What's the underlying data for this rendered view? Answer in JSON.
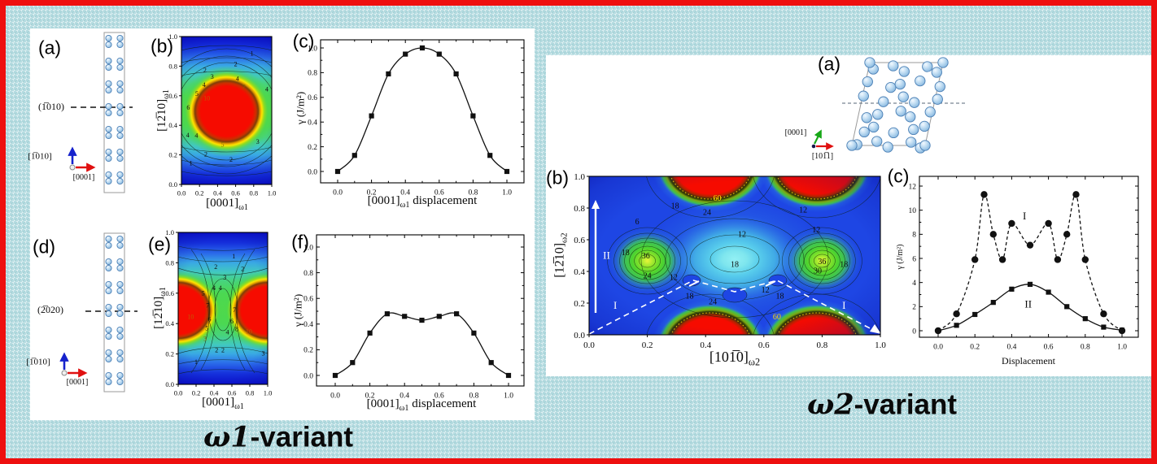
{
  "colors": {
    "background": "#b7dde2",
    "border": "#ee0f0f",
    "panel": "#ffffff",
    "contour_low": "#0b10c8",
    "contour_mid": "#47d37d",
    "contour_high": "#f60b00",
    "atom_fill": "#bcdcf2",
    "axis_blue": "#1622cc",
    "axis_red": "#e01010",
    "axis_green": "#18a818"
  },
  "captions": {
    "left": {
      "italic": "ω1",
      "rest": "-variant"
    },
    "right": {
      "italic": "ω2",
      "rest": "-variant"
    }
  },
  "left_panel": {
    "a": {
      "label": "(a)",
      "plane": "(1̅010)",
      "axis_up": "[1̅010]",
      "axis_right": "[0001]"
    },
    "b": {
      "label": "(b)"
    },
    "c": {
      "label": "(c)"
    },
    "d": {
      "label": "(d)",
      "plane": "(2̅020)",
      "axis_up": "[1̅010]",
      "axis_right": "[0001]"
    },
    "e": {
      "label": "(e)"
    },
    "f": {
      "label": "(f)"
    }
  },
  "right_panel": {
    "a": {
      "label": "(a)",
      "axis_up": "[0001]",
      "axis_right": "[101̅1]"
    },
    "b": {
      "label": "(b)"
    },
    "c": {
      "label": "(c)"
    }
  },
  "chart_data": [
    {
      "id": "omega1-gamma-surface-1010",
      "type": "heatmap",
      "xlabel": {
        "main": "[0001]",
        "sub": "ω1"
      },
      "ylabel": {
        "main": "[12̅10]",
        "sub": "ω1"
      },
      "xlim": [
        0,
        1
      ],
      "ylim": [
        0,
        1
      ],
      "xticks": [
        "0.0",
        "0.2",
        "0.4",
        "0.6",
        "0.8",
        "1.0"
      ],
      "yticks": [
        "0.0",
        "0.2",
        "0.4",
        "0.6",
        "0.8",
        "1.0"
      ],
      "high_region_center": [
        0.5,
        0.5
      ],
      "contour_labels": [
        {
          "t": "1",
          "x": 0.78,
          "y": 0.885
        },
        {
          "t": "2",
          "x": 0.6,
          "y": 0.815
        },
        {
          "t": "2",
          "x": 0.26,
          "y": 0.775
        },
        {
          "t": "3",
          "x": 0.34,
          "y": 0.73
        },
        {
          "t": "4",
          "x": 0.62,
          "y": 0.715
        },
        {
          "t": "4",
          "x": 0.25,
          "y": 0.675
        },
        {
          "t": "5",
          "x": 0.17,
          "y": 0.615
        },
        {
          "t": "7",
          "x": 0.69,
          "y": 0.66,
          "c": "#8a7000"
        },
        {
          "t": "10",
          "x": 0.28,
          "y": 0.585,
          "c": "#c25a00"
        },
        {
          "t": "4",
          "x": 0.945,
          "y": 0.645
        },
        {
          "t": "6",
          "x": 0.075,
          "y": 0.52
        },
        {
          "t": "4",
          "x": 0.07,
          "y": 0.335
        },
        {
          "t": "4",
          "x": 0.165,
          "y": 0.33
        },
        {
          "t": "5",
          "x": 0.455,
          "y": 0.27,
          "c": "#8a7000"
        },
        {
          "t": "3",
          "x": 0.845,
          "y": 0.29
        },
        {
          "t": "2",
          "x": 0.27,
          "y": 0.205
        },
        {
          "t": "2",
          "x": 0.55,
          "y": 0.17
        },
        {
          "t": "1",
          "x": 0.105,
          "y": 0.145
        }
      ]
    },
    {
      "id": "omega1-gsfe-1010",
      "type": "line",
      "xlabel": {
        "main": "[0001]",
        "sub": "ω1",
        "rest": " displacement"
      },
      "ylabel": "γ (J/m²)",
      "xticks": [
        "0.0",
        "0.2",
        "0.4",
        "0.6",
        "0.8",
        "1.0"
      ],
      "yticks": [
        "0.0",
        "0.2",
        "0.4",
        "0.6",
        "0.8",
        "1.0"
      ],
      "xlim": [
        -0.1,
        1.1
      ],
      "ylim": [
        -0.1,
        1.12
      ],
      "series": [
        {
          "name": "gamma",
          "marker": "square",
          "line": "solid",
          "x": [
            0,
            0.1,
            0.2,
            0.3,
            0.4,
            0.5,
            0.6,
            0.7,
            0.8,
            0.9,
            1.0
          ],
          "y": [
            0,
            0.13,
            0.45,
            0.79,
            0.95,
            1.0,
            0.95,
            0.79,
            0.45,
            0.13,
            0
          ]
        }
      ]
    },
    {
      "id": "omega1-gamma-surface-2020",
      "type": "heatmap",
      "xlabel": {
        "main": "[0001]",
        "sub": "ω1"
      },
      "ylabel": {
        "main": "[12̅10]",
        "sub": "ω1"
      },
      "xlim": [
        0,
        1
      ],
      "ylim": [
        0,
        1
      ],
      "xticks": [
        "0.0",
        "0.2",
        "0.4",
        "0.6",
        "0.8",
        "1.0"
      ],
      "yticks": [
        "0.0",
        "0.2",
        "0.4",
        "0.6",
        "0.8",
        "1.0"
      ],
      "high_region_centers": [
        [
          0,
          0.5
        ],
        [
          1,
          0.5
        ]
      ],
      "contour_labels": [
        {
          "t": "1",
          "x": 0.62,
          "y": 0.845
        },
        {
          "t": "2",
          "x": 0.42,
          "y": 0.775
        },
        {
          "t": "2",
          "x": 0.72,
          "y": 0.76
        },
        {
          "t": "3",
          "x": 0.52,
          "y": 0.705
        },
        {
          "t": "4",
          "x": 0.4,
          "y": 0.635
        },
        {
          "t": "4",
          "x": 0.47,
          "y": 0.635
        },
        {
          "t": "5",
          "x": 0.28,
          "y": 0.6
        },
        {
          "t": "7",
          "x": 0.33,
          "y": 0.52
        },
        {
          "t": "7",
          "x": 0.63,
          "y": 0.49
        },
        {
          "t": "10",
          "x": 0.14,
          "y": 0.445,
          "c": "#c25a00"
        },
        {
          "t": "6",
          "x": 0.35,
          "y": 0.43
        },
        {
          "t": "6",
          "x": 0.6,
          "y": 0.415
        },
        {
          "t": "5",
          "x": 0.32,
          "y": 0.37
        },
        {
          "t": "8",
          "x": 0.655,
          "y": 0.365
        },
        {
          "t": "10",
          "x": 0.79,
          "y": 0.35,
          "c": "#c25a00"
        },
        {
          "t": "4",
          "x": 0.55,
          "y": 0.345
        },
        {
          "t": "3",
          "x": 0.3,
          "y": 0.3,
          "c": "#8a7000"
        },
        {
          "t": "2",
          "x": 0.43,
          "y": 0.225
        },
        {
          "t": "2",
          "x": 0.5,
          "y": 0.225
        },
        {
          "t": "1",
          "x": 0.2,
          "y": 0.15
        },
        {
          "t": "3",
          "x": 0.95,
          "y": 0.205
        }
      ]
    },
    {
      "id": "omega1-gsfe-2020",
      "type": "line",
      "xlabel": {
        "main": "[0001]",
        "sub": "ω1",
        "rest": " displacement"
      },
      "ylabel": "γ (J/m²)",
      "xticks": [
        "0.0",
        "0.2",
        "0.4",
        "0.6",
        "0.8",
        "1.0"
      ],
      "yticks": [
        "0.0",
        "0.2",
        "0.4",
        "0.6",
        "0.8",
        "1.0"
      ],
      "xlim": [
        -0.1,
        1.1
      ],
      "ylim": [
        -0.1,
        1.12
      ],
      "series": [
        {
          "name": "gamma",
          "marker": "square",
          "line": "solid",
          "x": [
            0,
            0.1,
            0.2,
            0.3,
            0.4,
            0.5,
            0.6,
            0.7,
            0.8,
            0.9,
            1.0
          ],
          "y": [
            0,
            0.1,
            0.33,
            0.48,
            0.46,
            0.43,
            0.46,
            0.48,
            0.33,
            0.1,
            0
          ]
        }
      ]
    },
    {
      "id": "omega2-gamma-surface",
      "type": "heatmap",
      "xlabel": {
        "main": "[101̅0]",
        "sub": "ω2"
      },
      "ylabel": {
        "main": "[12̅10]",
        "sub": "ω2"
      },
      "xlim": [
        0,
        1
      ],
      "ylim": [
        0,
        1
      ],
      "xticks": [
        "0.0",
        "0.2",
        "0.4",
        "0.6",
        "0.8",
        "1.0"
      ],
      "yticks": [
        "0.0",
        "0.2",
        "0.4",
        "0.6",
        "0.8",
        "1.0"
      ],
      "high_region_centers": [
        [
          0.42,
          1
        ],
        [
          0.78,
          1
        ],
        [
          0.42,
          0
        ],
        [
          0.78,
          0
        ]
      ],
      "green_peak_centers": [
        [
          0.2,
          0.465
        ],
        [
          0.8,
          0.465
        ]
      ],
      "region_labels": [
        {
          "t": "II",
          "x": 0.06,
          "y": 0.5
        },
        {
          "t": "I",
          "x": 0.09,
          "y": 0.185
        },
        {
          "t": "I",
          "x": 0.875,
          "y": 0.185
        }
      ],
      "contour_labels": [
        {
          "t": "6",
          "x": 0.165,
          "y": 0.715
        },
        {
          "t": "12",
          "x": 0.525,
          "y": 0.635
        },
        {
          "t": "18",
          "x": 0.5,
          "y": 0.445
        },
        {
          "t": "18",
          "x": 0.125,
          "y": 0.52
        },
        {
          "t": "36",
          "x": 0.195,
          "y": 0.5
        },
        {
          "t": "24",
          "x": 0.2,
          "y": 0.375
        },
        {
          "t": "12",
          "x": 0.29,
          "y": 0.365
        },
        {
          "t": "12",
          "x": 0.78,
          "y": 0.665
        },
        {
          "t": "12",
          "x": 0.735,
          "y": 0.79
        },
        {
          "t": "36",
          "x": 0.8,
          "y": 0.465
        },
        {
          "t": "30",
          "x": 0.785,
          "y": 0.405
        },
        {
          "t": "18",
          "x": 0.875,
          "y": 0.445
        },
        {
          "t": "18",
          "x": 0.295,
          "y": 0.815
        },
        {
          "t": "24",
          "x": 0.405,
          "y": 0.775
        },
        {
          "t": "60",
          "x": 0.44,
          "y": 0.865,
          "c": "#ffd900"
        },
        {
          "t": "18",
          "x": 0.345,
          "y": 0.245
        },
        {
          "t": "24",
          "x": 0.425,
          "y": 0.21
        },
        {
          "t": "12",
          "x": 0.605,
          "y": 0.285
        },
        {
          "t": "18",
          "x": 0.655,
          "y": 0.245
        },
        {
          "t": "60",
          "x": 0.645,
          "y": 0.115,
          "c": "#ffd900"
        }
      ]
    },
    {
      "id": "omega2-gsfe-lines",
      "type": "line",
      "xlabel": "Displacement",
      "ylabel": "γ (J/m²)",
      "xticks": [
        "0.0",
        "0.2",
        "0.4",
        "0.6",
        "0.8",
        "1.0"
      ],
      "yticks": [
        "0",
        "2",
        "4",
        "6",
        "8",
        "10",
        "12"
      ],
      "xlim": [
        -0.1,
        1.1
      ],
      "ylim": [
        -0.8,
        12.5
      ],
      "annotations": [
        {
          "t": "I",
          "x": 0.47,
          "y": 9.5
        },
        {
          "t": "II",
          "x": 0.49,
          "y": 2.2
        }
      ],
      "series": [
        {
          "name": "I",
          "marker": "circle",
          "line": "dashed",
          "x": [
            0,
            0.1,
            0.2,
            0.25,
            0.3,
            0.35,
            0.4,
            0.5,
            0.6,
            0.65,
            0.7,
            0.75,
            0.8,
            0.9,
            1.0
          ],
          "y": [
            0,
            1.4,
            5.9,
            11.3,
            8.0,
            5.9,
            8.9,
            7.1,
            8.9,
            5.9,
            8.0,
            11.3,
            5.9,
            1.4,
            0
          ]
        },
        {
          "name": "II",
          "marker": "square",
          "line": "solid",
          "x": [
            0,
            0.1,
            0.2,
            0.3,
            0.4,
            0.5,
            0.6,
            0.7,
            0.8,
            0.9,
            1.0
          ],
          "y": [
            0,
            0.45,
            1.35,
            2.35,
            3.45,
            3.85,
            3.2,
            2.0,
            1.0,
            0.3,
            0.05
          ]
        }
      ]
    }
  ]
}
